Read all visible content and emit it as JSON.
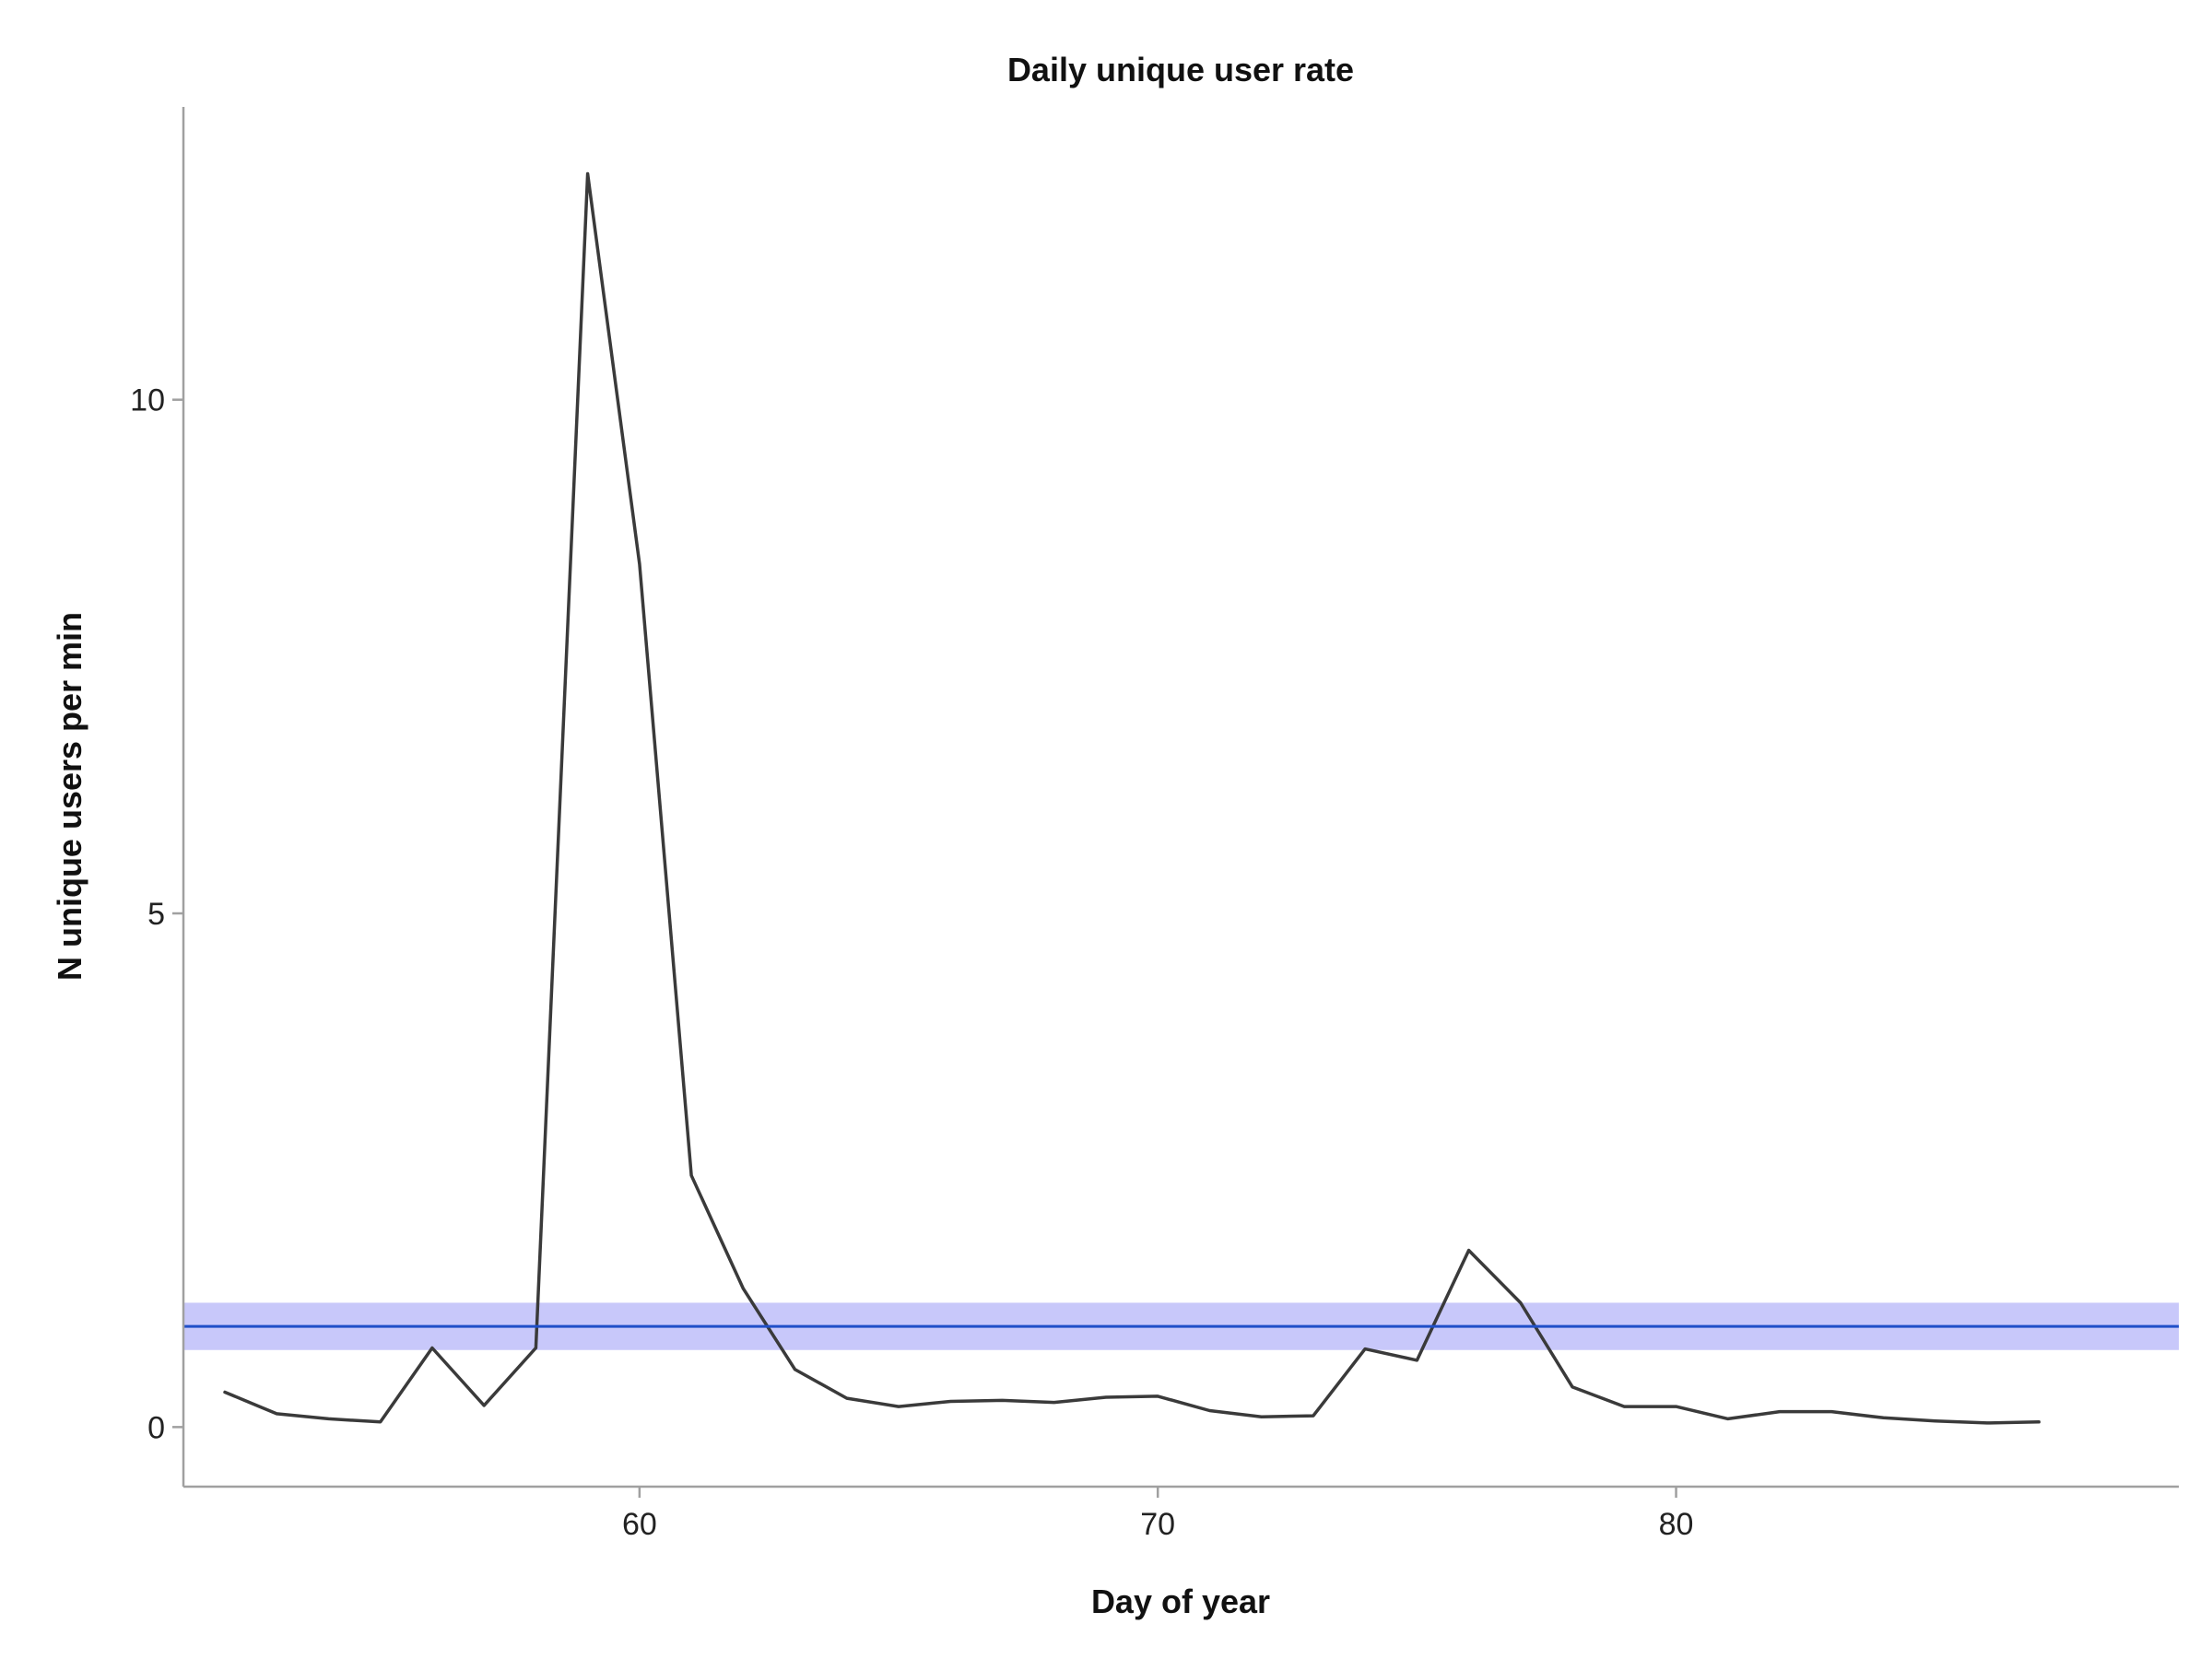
{
  "chart_data": {
    "type": "line",
    "title": "Daily unique user rate",
    "xlabel": "Day of year",
    "ylabel": "N unique users per min",
    "xlim": [
      51.2,
      89.7
    ],
    "ylim": [
      -0.58,
      12.85
    ],
    "xticks": [
      60,
      70,
      80
    ],
    "yticks": [
      0,
      5,
      10
    ],
    "grid": false,
    "series": [
      {
        "color": "#3a3a3a",
        "x": [
          52,
          53,
          54,
          55,
          56,
          57,
          58,
          59,
          60,
          61,
          62,
          63,
          64,
          65,
          66,
          67,
          68,
          69,
          70,
          71,
          72,
          73,
          74,
          75,
          76,
          77,
          78,
          79,
          80,
          81,
          82,
          83,
          84,
          85,
          86,
          87
        ],
        "y": [
          0.34,
          0.13,
          0.08,
          0.05,
          0.77,
          0.21,
          0.77,
          12.2,
          8.4,
          2.45,
          1.35,
          0.56,
          0.28,
          0.2,
          0.25,
          0.26,
          0.24,
          0.29,
          0.3,
          0.16,
          0.1,
          0.11,
          0.76,
          0.65,
          1.72,
          1.21,
          0.39,
          0.2,
          0.2,
          0.08,
          0.15,
          0.15,
          0.09,
          0.06,
          0.04,
          0.05
        ]
      }
    ],
    "reference_line": {
      "y": 0.98,
      "band": [
        0.75,
        1.21
      ],
      "line_color": "#1f4fc8",
      "band_color": "#c8c8fa"
    }
  }
}
